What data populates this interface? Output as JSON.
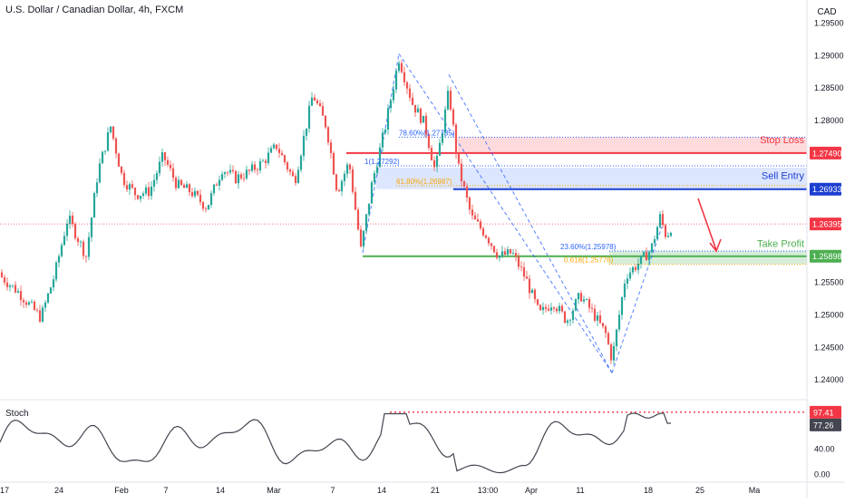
{
  "header": {
    "title": "U.S. Dollar / Canadian Dollar, 4h, FXCM"
  },
  "chart_data": {
    "type": "candlestick",
    "currency_label": "CAD",
    "y_ticks": [
      "1.29500",
      "1.29000",
      "1.28500",
      "1.28000",
      "1.27500",
      "1.27000",
      "1.26500",
      "1.26000",
      "1.25500",
      "1.25000",
      "1.24500",
      "1.24000"
    ],
    "y_range": [
      1.237,
      1.2985
    ],
    "x_ticks": [
      "17",
      "24",
      "Feb",
      "7",
      "14",
      "Mar",
      "7",
      "14",
      "21",
      "13:00",
      "Apr",
      "11",
      "18",
      "25",
      "Ma"
    ],
    "price_labels": [
      {
        "value": 1.2749,
        "text": "1.27490",
        "color": "#f23645"
      },
      {
        "value": 1.26933,
        "text": "1.26933",
        "color": "#1c3fd1"
      },
      {
        "value": 1.26395,
        "text": "1.26395",
        "color": "#f23645"
      },
      {
        "value": 1.25898,
        "text": "1.25898",
        "color": "#4caf50"
      }
    ],
    "levels": {
      "stop_loss": {
        "label": "Stop Loss",
        "value": 1.2749,
        "color": "#f23645"
      },
      "sell_entry": {
        "label": "Sell Entry",
        "value": 1.26933,
        "color": "#1c3fd1"
      },
      "take_profit": {
        "label": "Take Profit",
        "value": 1.25898,
        "color": "#4caf50"
      }
    },
    "fib_labels": [
      {
        "text": "78.60%(1.27735)",
        "value": 1.27735,
        "color": "#2962ff"
      },
      {
        "text": "1(1.27292)",
        "value": 1.27292,
        "color": "#2962ff"
      },
      {
        "text": "61.80%(1.26987)",
        "value": 1.26987,
        "color": "#f7a600"
      },
      {
        "text": "23.60%(1.25978)",
        "value": 1.25978,
        "color": "#2962ff"
      },
      {
        "text": "0.618(1.25776)",
        "value": 1.25776,
        "color": "#f7a600"
      }
    ],
    "oscillator": {
      "name": "Stoch",
      "y_ticks": [
        "40.00",
        "0.00"
      ],
      "labels": [
        {
          "text": "97.41",
          "value": 97.41,
          "color": "#f23645"
        },
        {
          "text": "77.26",
          "value": 77.26,
          "color": "#434651"
        }
      ]
    },
    "colors": {
      "up": "#26a69a",
      "down": "#ef5350",
      "stoch": "#434651"
    }
  }
}
